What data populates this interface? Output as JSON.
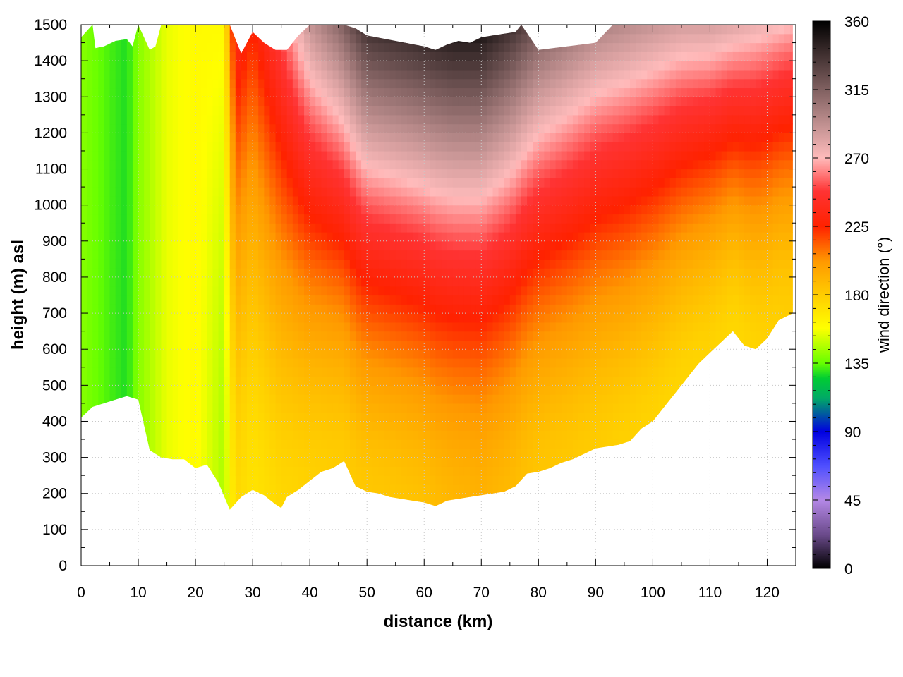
{
  "chart_data": {
    "type": "heatmap",
    "title": "",
    "xlabel": "distance (km)",
    "ylabel": "height (m) asl",
    "colorbar_label": "wind direction (°)",
    "xlim": [
      0,
      125
    ],
    "ylim": [
      0,
      1500
    ],
    "x_ticks": [
      "0",
      "10",
      "20",
      "30",
      "40",
      "50",
      "60",
      "70",
      "80",
      "90",
      "100",
      "110",
      "120"
    ],
    "y_ticks": [
      "0",
      "100",
      "200",
      "300",
      "400",
      "500",
      "600",
      "700",
      "800",
      "900",
      "1000",
      "1100",
      "1200",
      "1300",
      "1400",
      "1500"
    ],
    "colorbar_range": [
      0,
      360
    ],
    "colorbar_ticks": [
      "0",
      "45",
      "90",
      "135",
      "180",
      "225",
      "270",
      "315",
      "360"
    ],
    "colormap": [
      {
        "value": 0,
        "color": "#000000"
      },
      {
        "value": 22,
        "color": "#6a4a8a"
      },
      {
        "value": 45,
        "color": "#b488e6"
      },
      {
        "value": 67,
        "color": "#5050ff"
      },
      {
        "value": 90,
        "color": "#0000e0"
      },
      {
        "value": 112,
        "color": "#00aa66"
      },
      {
        "value": 125,
        "color": "#00cc33"
      },
      {
        "value": 135,
        "color": "#66ff00"
      },
      {
        "value": 158,
        "color": "#ffff00"
      },
      {
        "value": 180,
        "color": "#ffcc00"
      },
      {
        "value": 202,
        "color": "#ff9900"
      },
      {
        "value": 225,
        "color": "#ff2200"
      },
      {
        "value": 248,
        "color": "#ff3333"
      },
      {
        "value": 270,
        "color": "#ffbbbb"
      },
      {
        "value": 292,
        "color": "#c09090"
      },
      {
        "value": 315,
        "color": "#806060"
      },
      {
        "value": 338,
        "color": "#403030"
      },
      {
        "value": 360,
        "color": "#000000"
      }
    ],
    "terrain_height": {
      "x": [
        0,
        2,
        4,
        6,
        8,
        10,
        12,
        14,
        16,
        18,
        20,
        22,
        24,
        26,
        28,
        30,
        32,
        34,
        35,
        36,
        38,
        40,
        42,
        44,
        46,
        48,
        50,
        52,
        54,
        56,
        58,
        60,
        62,
        64,
        66,
        68,
        70,
        72,
        74,
        76,
        78,
        80,
        82,
        84,
        86,
        88,
        90,
        92,
        94,
        96,
        98,
        100,
        102,
        104,
        106,
        108,
        110,
        112,
        114,
        116,
        118,
        120,
        122,
        124.5
      ],
      "y": [
        410,
        440,
        450,
        460,
        470,
        460,
        320,
        300,
        295,
        295,
        270,
        280,
        230,
        155,
        190,
        210,
        195,
        170,
        160,
        190,
        210,
        235,
        260,
        270,
        290,
        220,
        205,
        200,
        190,
        185,
        180,
        175,
        165,
        180,
        185,
        190,
        195,
        200,
        205,
        220,
        255,
        260,
        270,
        285,
        295,
        310,
        325,
        330,
        335,
        345,
        380,
        400,
        440,
        480,
        520,
        560,
        590,
        620,
        650,
        610,
        600,
        630,
        680,
        700
      ]
    },
    "top_boundary": {
      "x": [
        0,
        2,
        2.5,
        4,
        6,
        8,
        9,
        10,
        12,
        13,
        14,
        16,
        18,
        20,
        22,
        24,
        26,
        28,
        30,
        32,
        34,
        36,
        38,
        40,
        42,
        44,
        46,
        48,
        50,
        55,
        60,
        62,
        64,
        66,
        68,
        70,
        72,
        74,
        76,
        77,
        80,
        85,
        90,
        93,
        95,
        100,
        105,
        110,
        115,
        120,
        122,
        124.5
      ],
      "y": [
        1465,
        1500,
        1435,
        1440,
        1455,
        1460,
        1440,
        1500,
        1430,
        1440,
        1500,
        1500,
        1500,
        1500,
        1500,
        1500,
        1500,
        1420,
        1480,
        1450,
        1430,
        1430,
        1470,
        1500,
        1500,
        1500,
        1500,
        1490,
        1470,
        1455,
        1440,
        1430,
        1445,
        1455,
        1450,
        1465,
        1470,
        1475,
        1480,
        1500,
        1430,
        1440,
        1450,
        1500,
        1500,
        1500,
        1500,
        1500,
        1500,
        1500,
        1500,
        1500
      ]
    },
    "wind_direction_profile": {
      "x": [
        0,
        5,
        8,
        10,
        15,
        20,
        25,
        27,
        30,
        35,
        40,
        45,
        50,
        55,
        60,
        65,
        70,
        75,
        80,
        85,
        90,
        95,
        100,
        105,
        110,
        115,
        120,
        124.5
      ],
      "surface": [
        140,
        132,
        128,
        140,
        155,
        160,
        145,
        175,
        170,
        175,
        178,
        180,
        182,
        183,
        185,
        190,
        192,
        188,
        183,
        182,
        180,
        178,
        177,
        176,
        177,
        175,
        178,
        180
      ],
      "aloft_1500m": [
        140,
        132,
        128,
        140,
        155,
        160,
        160,
        240,
        225,
        255,
        290,
        310,
        340,
        345,
        350,
        355,
        355,
        340,
        320,
        310,
        300,
        295,
        290,
        285,
        285,
        280,
        275,
        270
      ]
    }
  }
}
